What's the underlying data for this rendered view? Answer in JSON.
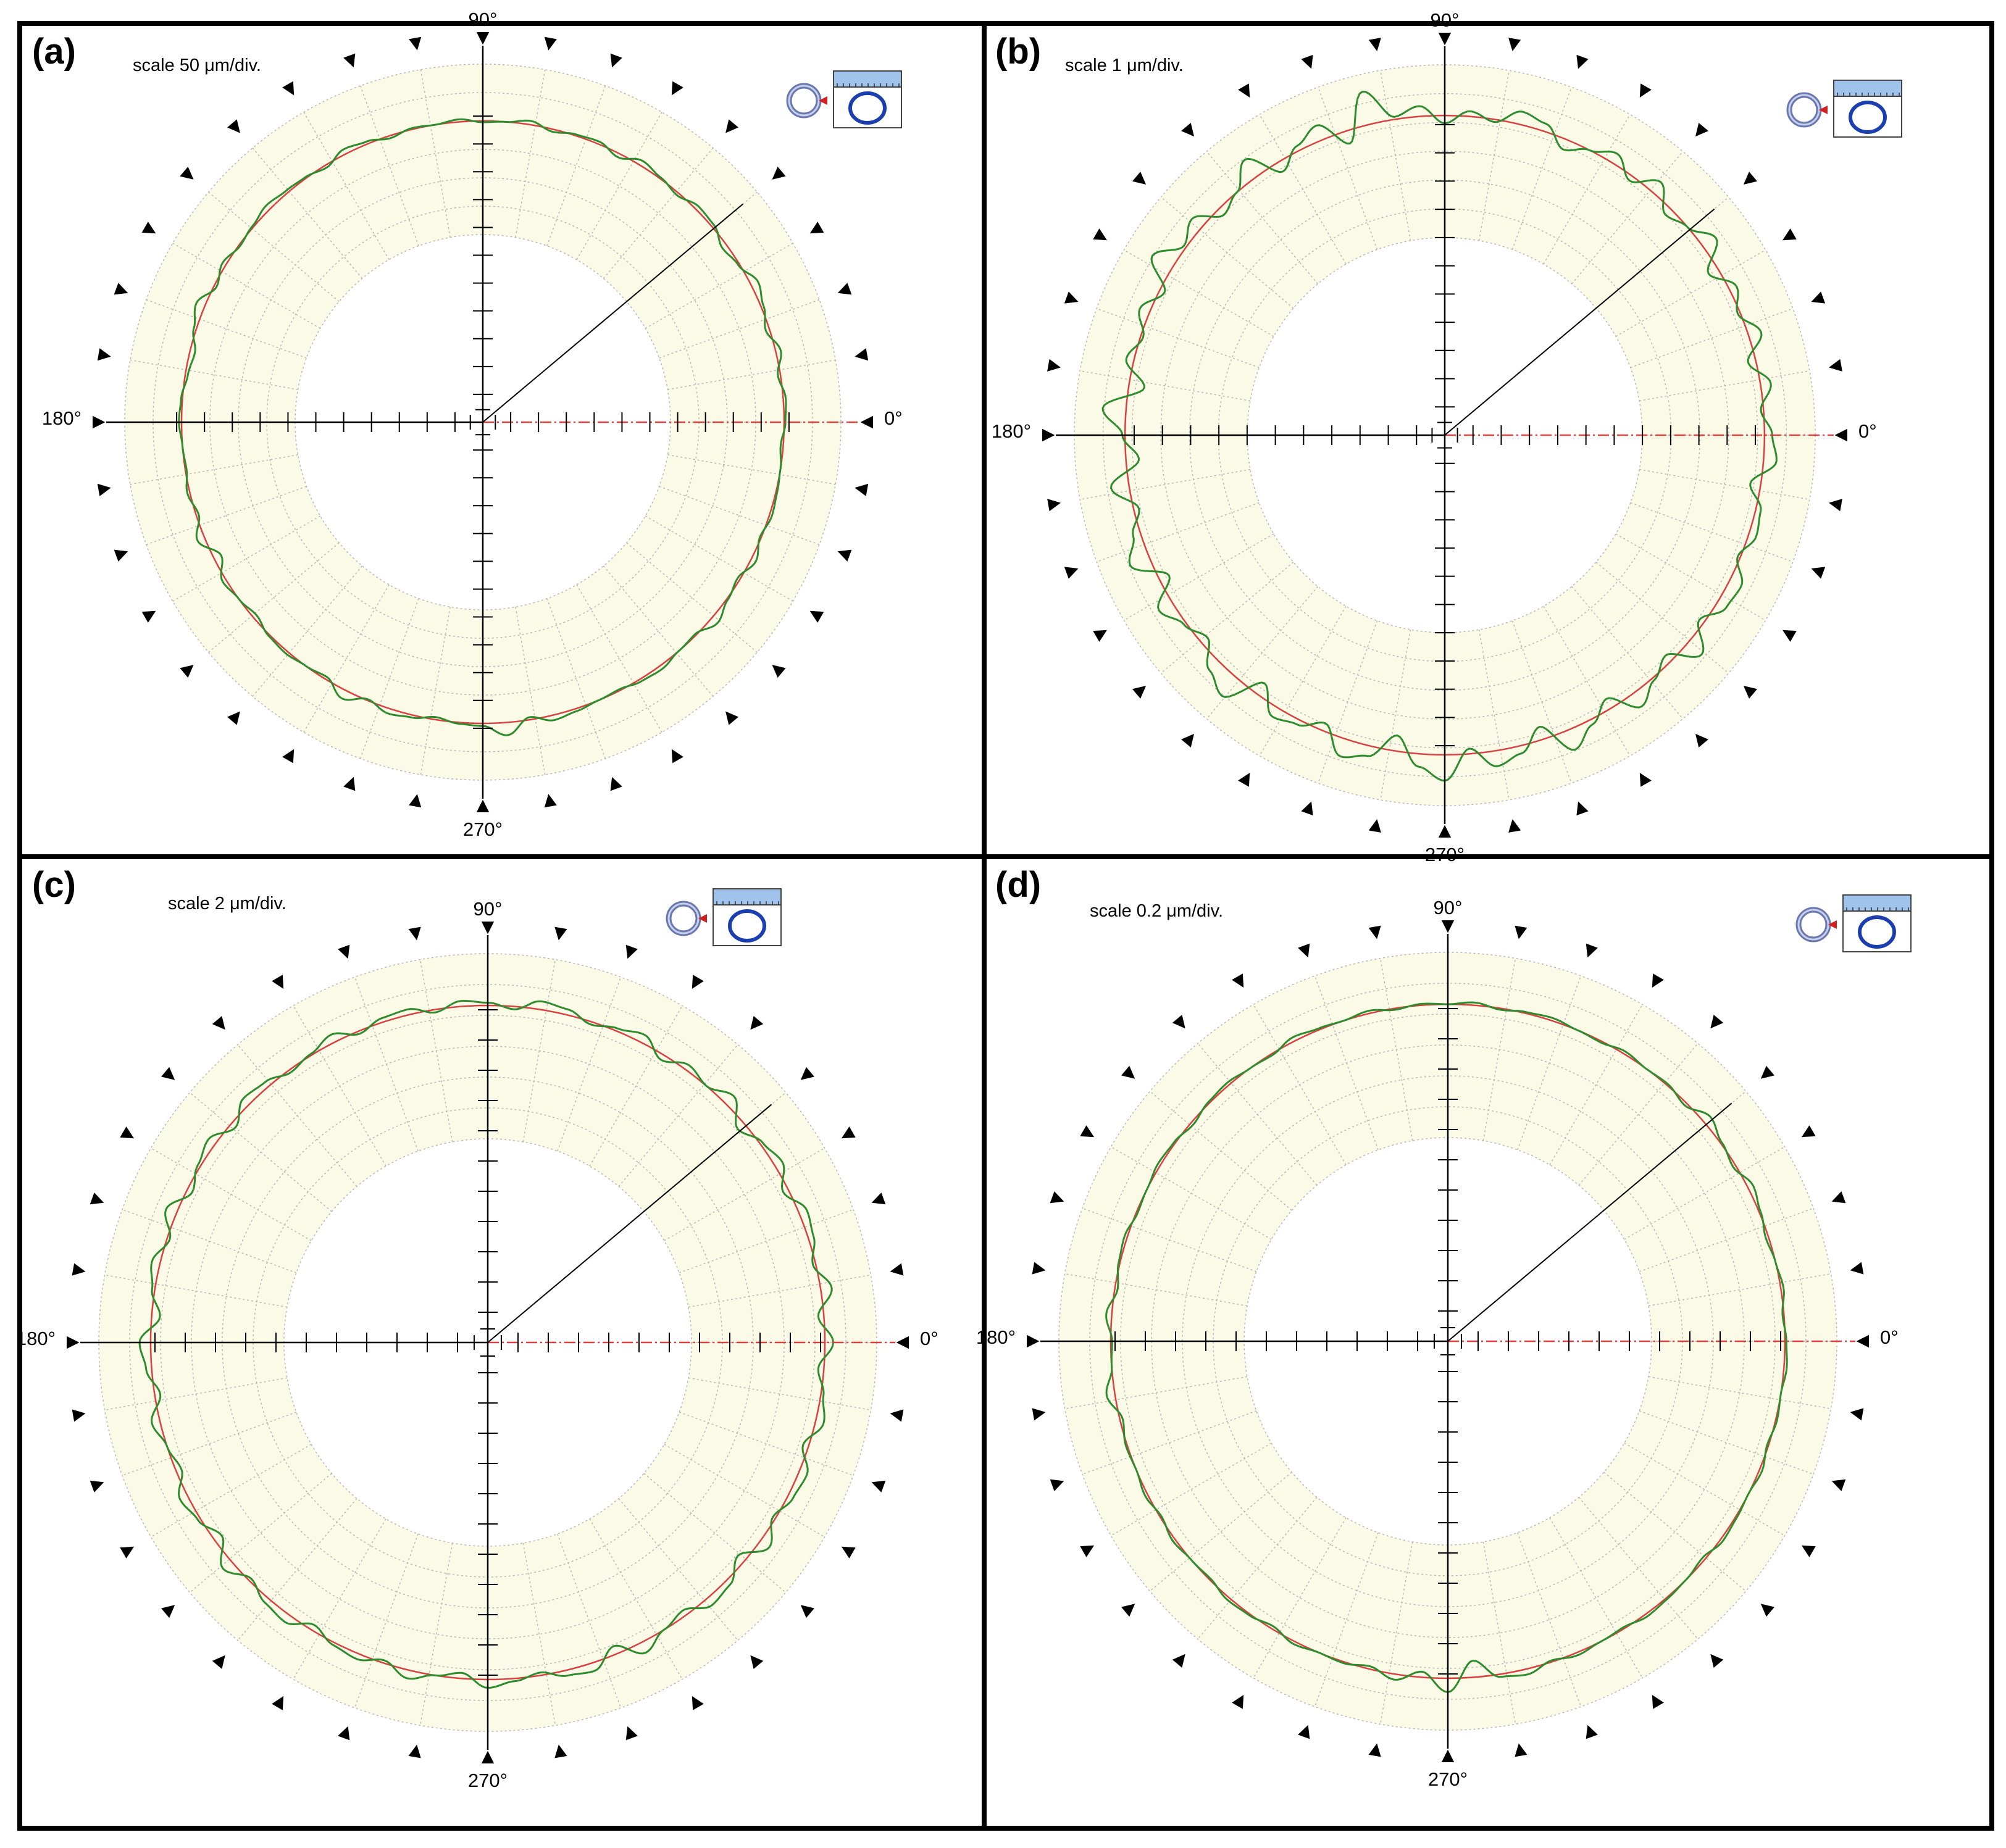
{
  "colors": {
    "ring_fill": "#fafae6",
    "profile": "#2e8b2e",
    "reference": "#d94040",
    "axis": "#000000",
    "grid": "#b8b8b8",
    "icon_blue": "#1c3fb0",
    "icon_ruler": "#9fc3ea"
  },
  "icons": [
    "part-ring-icon",
    "gauge-ruler-icon"
  ],
  "chart_data": [
    {
      "panel": "(a)",
      "type": "polar-roundness",
      "scale_label": "scale 50 μm/div.",
      "angle_labels": {
        "a0": "0°",
        "a90": "90°",
        "a180": "180°",
        "a270": "270°"
      },
      "reference_radius_div": 4.5,
      "profile_deviation_div": [
        0.05,
        0.1,
        -0.1,
        0.2,
        -0.15,
        0.1,
        0.3,
        -0.05,
        -0.2,
        0.1,
        0.15,
        -0.1,
        0.05,
        0.2,
        -0.15,
        0.1,
        0.05,
        -0.1,
        0.15,
        0.0,
        -0.05,
        0.1,
        0.0,
        0.05,
        -0.1,
        0.1,
        0.2,
        -0.1,
        0.05,
        0.1,
        0.2,
        0.05,
        -0.05,
        0.15,
        -0.1,
        0.35,
        0.1,
        -0.2,
        -0.1,
        0.05,
        0.1,
        0.0,
        -0.05,
        0.1,
        -0.1,
        0.3,
        -0.3,
        0.15,
        0.0,
        -0.15,
        0.05,
        0.1,
        0.0,
        -0.1,
        0.35,
        -0.05,
        0.2,
        0.1,
        -0.1,
        0.05,
        0.1,
        0.5,
        -0.1,
        0.2,
        0.1,
        0.0,
        -0.05,
        0.1,
        0.15,
        0.0,
        -0.05,
        0.3,
        0.05,
        -0.1,
        0.2,
        -0.05,
        0.1,
        0.05,
        0.0,
        -0.1
      ]
    },
    {
      "panel": "(b)",
      "type": "polar-roundness",
      "scale_label": "scale 1 μm/div.",
      "angle_labels": {
        "a0": "0°",
        "a90": "90°",
        "a180": "180°",
        "a270": "270°"
      },
      "reference_radius_div": 4.8,
      "profile_deviation_div": [
        0.3,
        -0.1,
        0.4,
        -0.3,
        0.5,
        -0.1,
        0.3,
        -0.4,
        0.6,
        0.0,
        -0.3,
        0.5,
        -0.2,
        0.4,
        0.0,
        -0.4,
        0.3,
        0.5,
        -0.1,
        0.2,
        -0.3,
        0.4,
        0.1,
        1.3,
        -0.5,
        0.6,
        0.2,
        -0.4,
        0.8,
        0.0,
        -0.3,
        0.5,
        0.1,
        0.9,
        -0.2,
        0.4,
        -0.1,
        0.3,
        -0.6,
        0.9,
        0.1,
        -0.5,
        0.7,
        -0.2,
        0.3,
        0.8,
        -0.4,
        0.6,
        0.1,
        -0.3,
        0.5,
        0.9,
        -0.5,
        0.4,
        0.2,
        -0.3,
        0.7,
        0.4,
        -0.6,
        0.5,
        1.0,
        -0.2,
        0.6,
        0.3,
        -0.5,
        0.8,
        0.2,
        -0.4,
        0.6,
        0.1,
        -0.3,
        0.7,
        -0.2,
        0.4,
        0.5,
        -0.1,
        0.3,
        0.2,
        -0.4,
        0.5
      ]
    },
    {
      "panel": "(c)",
      "type": "polar-roundness",
      "scale_label": "scale 2 μm/div.",
      "angle_labels": {
        "a0": "0°",
        "a90": "90°",
        "a180": "180°",
        "a270": "270°"
      },
      "reference_radius_div": 4.9,
      "profile_deviation_div": [
        0.3,
        -0.2,
        0.4,
        -0.1,
        0.2,
        0.3,
        -0.2,
        0.3,
        0.1,
        -0.3,
        0.4,
        0.0,
        0.2,
        -0.2,
        0.3,
        0.1,
        -0.1,
        0.2,
        0.3,
        -0.1,
        0.1,
        0.2,
        -0.1,
        0.2,
        0.15,
        -0.1,
        0.3,
        0.05,
        -0.1,
        0.2,
        0.3,
        -0.2,
        0.3,
        0.1,
        -0.2,
        0.4,
        -0.1,
        0.3,
        0.1,
        -0.3,
        0.4,
        0.2,
        -0.2,
        0.3,
        0.0,
        -0.2,
        0.3,
        0.1,
        -0.3,
        0.4,
        -0.1,
        0.2,
        0.3,
        -0.2,
        0.1,
        0.2,
        -0.1,
        0.3,
        0.0,
        -0.2,
        0.3,
        0.1,
        -0.1,
        0.2,
        0.3,
        -0.3,
        0.4,
        0.0,
        -0.2,
        0.3,
        0.2,
        -0.3,
        0.4,
        -0.1,
        0.2,
        0.3,
        -0.2,
        0.3,
        0.1,
        -0.2
      ]
    },
    {
      "panel": "(d)",
      "type": "polar-roundness",
      "scale_label": "scale 0.2 μm/div.",
      "angle_labels": {
        "a0": "0°",
        "a90": "90°",
        "a180": "180°",
        "a270": "270°"
      },
      "reference_radius_div": 4.9,
      "profile_deviation_div": [
        0.05,
        -0.05,
        0.1,
        0.0,
        -0.1,
        0.05,
        0.2,
        -0.1,
        0.05,
        0.3,
        -0.1,
        0.05,
        0.0,
        0.1,
        -0.05,
        0.0,
        0.1,
        0.05,
        -0.05,
        0.1,
        0.0,
        0.05,
        -0.05,
        0.1,
        0.0,
        0.05,
        0.15,
        -0.05,
        0.0,
        0.1,
        0.05,
        -0.1,
        0.05,
        0.1,
        0.0,
        -0.05,
        0.1,
        0.05,
        -0.1,
        0.2,
        -0.05,
        0.0,
        0.3,
        -0.1,
        0.05,
        0.0,
        0.1,
        -0.05,
        0.1,
        0.0,
        -0.05,
        0.1,
        0.05,
        -0.1,
        0.1,
        0.0,
        0.05,
        -0.1,
        0.2,
        -0.2,
        0.5,
        -0.6,
        0.1,
        0.2,
        -0.05,
        0.1,
        0.0,
        -0.05,
        0.1,
        0.05,
        0.0,
        -0.1,
        0.1,
        0.05,
        0.0,
        0.1,
        -0.05,
        0.05,
        0.0,
        0.1
      ]
    }
  ]
}
